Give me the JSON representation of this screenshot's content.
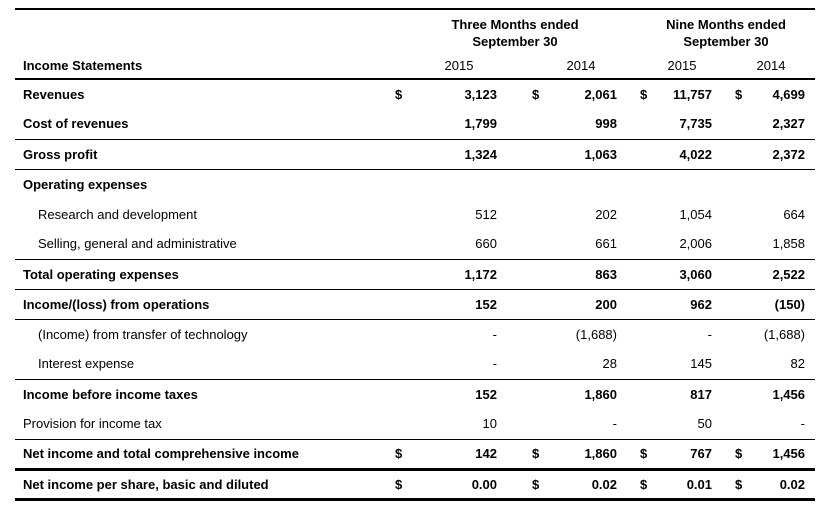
{
  "page": {
    "background_color": "#ffffff",
    "text_color": "#000000",
    "rule_color": "#000000"
  },
  "table": {
    "currency_symbol": "$",
    "row_header_label": "Income Statements",
    "column_groups": [
      {
        "title": "Three Months ended",
        "subtitle": "September 30"
      },
      {
        "title": "Nine Months ended",
        "subtitle": "September 30"
      }
    ],
    "year_columns": [
      "2015",
      "2014",
      "2015",
      "2014"
    ],
    "rows": [
      {
        "label": "Revenues",
        "style": "bold",
        "indent": false,
        "show_currency": true,
        "values": [
          "3,123",
          "2,061",
          "11,757",
          "4,699"
        ],
        "bottom_border": "none"
      },
      {
        "label": "Cost of revenues",
        "style": "bold",
        "indent": false,
        "show_currency": false,
        "values": [
          "1,799",
          "998",
          "7,735",
          "2,327"
        ],
        "bottom_border": "thin"
      },
      {
        "label": "Gross profit",
        "style": "bold",
        "indent": false,
        "show_currency": false,
        "values": [
          "1,324",
          "1,063",
          "4,022",
          "2,372"
        ],
        "bottom_border": "thin"
      },
      {
        "label": "Operating expenses",
        "style": "bold",
        "indent": false,
        "show_currency": false,
        "values": [
          "",
          "",
          "",
          ""
        ],
        "bottom_border": "none"
      },
      {
        "label": "Research and development",
        "style": "regular",
        "indent": true,
        "show_currency": false,
        "values": [
          "512",
          "202",
          "1,054",
          "664"
        ],
        "bottom_border": "none"
      },
      {
        "label": "Selling, general and administrative",
        "style": "regular",
        "indent": true,
        "show_currency": false,
        "values": [
          "660",
          "661",
          "2,006",
          "1,858"
        ],
        "bottom_border": "thin"
      },
      {
        "label": "Total operating expenses",
        "style": "bold",
        "indent": false,
        "show_currency": false,
        "values": [
          "1,172",
          "863",
          "3,060",
          "2,522"
        ],
        "bottom_border": "thin"
      },
      {
        "label": "Income/(loss) from operations",
        "style": "bold",
        "indent": false,
        "show_currency": false,
        "values": [
          "152",
          "200",
          "962",
          "(150)"
        ],
        "bottom_border": "thin"
      },
      {
        "label": "(Income) from transfer of technology",
        "style": "regular",
        "indent": true,
        "show_currency": false,
        "values": [
          "-",
          "(1,688)",
          "-",
          "(1,688)"
        ],
        "bottom_border": "none"
      },
      {
        "label": "Interest expense",
        "style": "regular",
        "indent": true,
        "show_currency": false,
        "values": [
          "-",
          "28",
          "145",
          "82"
        ],
        "bottom_border": "thin"
      },
      {
        "label": "Income before income taxes",
        "style": "bold",
        "indent": false,
        "show_currency": false,
        "values": [
          "152",
          "1,860",
          "817",
          "1,456"
        ],
        "bottom_border": "none"
      },
      {
        "label": "Provision for income tax",
        "style": "regular",
        "indent": false,
        "show_currency": false,
        "values": [
          "10",
          "-",
          "50",
          "-"
        ],
        "bottom_border": "thin"
      },
      {
        "label": "Net income and total comprehensive income",
        "style": "bold",
        "indent": false,
        "show_currency": true,
        "values": [
          "142",
          "1,860",
          "767",
          "1,456"
        ],
        "bottom_border": "thick"
      },
      {
        "label": "Net income per share, basic and diluted",
        "style": "bold",
        "indent": false,
        "show_currency": true,
        "values": [
          "0.00",
          "0.02",
          "0.01",
          "0.02"
        ],
        "bottom_border": "thick"
      }
    ]
  }
}
